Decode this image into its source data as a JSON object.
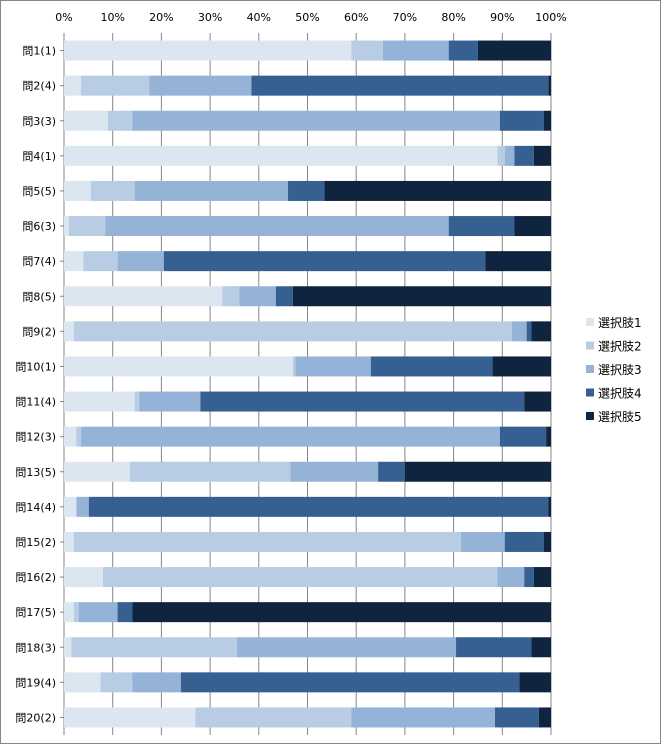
{
  "chart_data": {
    "type": "bar",
    "orientation": "horizontal",
    "stacked": "percent",
    "xlim": [
      0,
      100
    ],
    "x_ticks": [
      "0%",
      "10%",
      "20%",
      "30%",
      "40%",
      "50%",
      "60%",
      "70%",
      "80%",
      "90%",
      "100%"
    ],
    "x_tick_position": "top",
    "grid": "vertical",
    "legend_position": "right",
    "categories": [
      "問1(1)",
      "問2(4)",
      "問3(3)",
      "問4(1)",
      "問5(5)",
      "問6(3)",
      "問7(4)",
      "問8(5)",
      "問9(2)",
      "問10(1)",
      "問11(4)",
      "問12(3)",
      "問13(5)",
      "問14(4)",
      "問15(2)",
      "問16(2)",
      "問17(5)",
      "問18(3)",
      "問19(4)",
      "問20(2)"
    ],
    "series": [
      {
        "name": "選択肢1",
        "color": "#dce6f1",
        "values": [
          59,
          3.5,
          9,
          89,
          5.5,
          1,
          4,
          32.5,
          2,
          47,
          14.5,
          2.5,
          13.5,
          2.5,
          2,
          8,
          2,
          1.5,
          7.5,
          27
        ]
      },
      {
        "name": "選択肢2",
        "color": "#b8cce4",
        "values": [
          6.5,
          14,
          5,
          1.5,
          9,
          7.5,
          7,
          3.5,
          90,
          0.5,
          1,
          1,
          33,
          0,
          79.5,
          81,
          1,
          34,
          6.5,
          32
        ]
      },
      {
        "name": "選択肢3",
        "color": "#95b3d7",
        "values": [
          13.5,
          21,
          75.5,
          2,
          31.5,
          70.5,
          9.5,
          7.5,
          3,
          15.5,
          12.5,
          86,
          18,
          2.5,
          9,
          5.5,
          8,
          45,
          10,
          29.5
        ]
      },
      {
        "name": "選択肢4",
        "color": "#366092",
        "values": [
          6,
          61,
          9,
          4,
          7.5,
          13.5,
          66,
          3.5,
          1,
          25,
          66.5,
          9.5,
          5.5,
          92.5,
          8,
          2,
          3,
          15.5,
          69.5,
          9
        ]
      },
      {
        "name": "選択肢5",
        "color": "#0f243e",
        "values": [
          15,
          0.5,
          1.5,
          3.5,
          46.5,
          7.5,
          13.5,
          53,
          4,
          12,
          5.5,
          1,
          30,
          0.5,
          1.5,
          3.5,
          86,
          4,
          6.5,
          2.5
        ]
      }
    ]
  }
}
